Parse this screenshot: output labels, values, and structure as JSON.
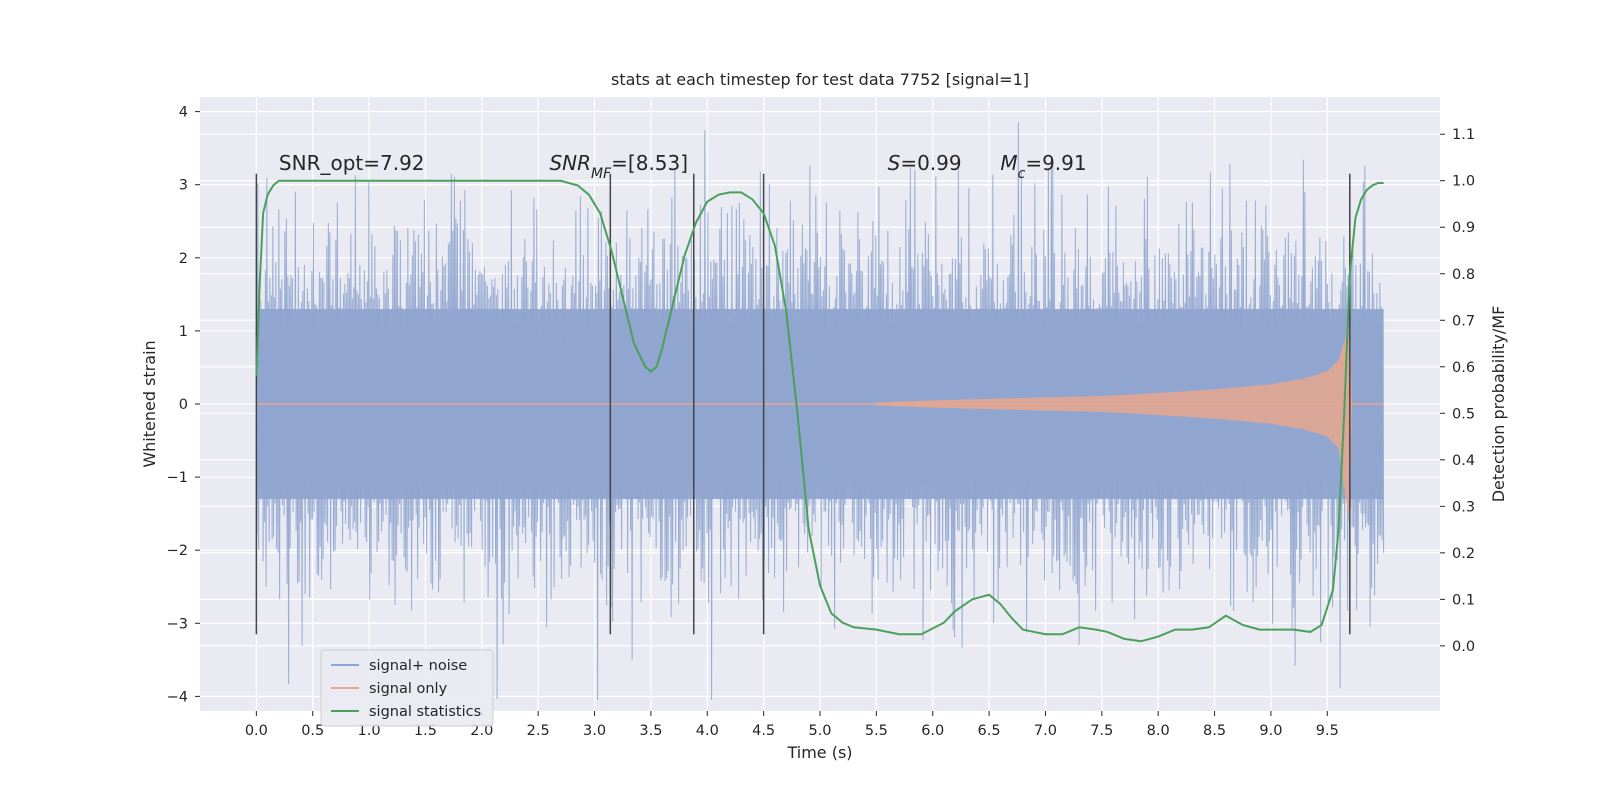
{
  "chart_data": {
    "type": "line",
    "title": "stats at each timestep for test data 7752 [signal=1]",
    "xlabel": "Time (s)",
    "ylabel": "Whitened strain",
    "y2label": "Detection probability/MF",
    "xlim": [
      -0.5,
      10.5
    ],
    "ylim": [
      -4.2,
      4.2
    ],
    "y2lim": [
      -0.14,
      1.18
    ],
    "x_ticks": [
      "0.0",
      "0.5",
      "1.0",
      "1.5",
      "2.0",
      "2.5",
      "3.0",
      "3.5",
      "4.0",
      "4.5",
      "5.0",
      "5.5",
      "6.0",
      "6.5",
      "7.0",
      "7.5",
      "8.0",
      "8.5",
      "9.0",
      "9.5"
    ],
    "x_tick_values": [
      0,
      0.5,
      1,
      1.5,
      2,
      2.5,
      3,
      3.5,
      4,
      4.5,
      5,
      5.5,
      6,
      6.5,
      7,
      7.5,
      8,
      8.5,
      9,
      9.5
    ],
    "y_ticks": [
      "4",
      "3",
      "2",
      "1",
      "0",
      "−1",
      "−2",
      "−3",
      "−4"
    ],
    "y_tick_values": [
      4,
      3,
      2,
      1,
      0,
      -1,
      -2,
      -3,
      -4
    ],
    "y2_ticks": [
      "1.1",
      "1.0",
      "0.9",
      "0.8",
      "0.7",
      "0.6",
      "0.5",
      "0.4",
      "0.3",
      "0.2",
      "0.1",
      "0.0"
    ],
    "y2_tick_values": [
      1.1,
      1.0,
      0.9,
      0.8,
      0.7,
      0.6,
      0.5,
      0.4,
      0.3,
      0.2,
      0.1,
      0.0
    ],
    "grid": true,
    "legend_position": "bottom-left",
    "noise_band": {
      "inner_amplitude": 1.3,
      "outer_amplitude": 1.95,
      "peak_max": 4.05,
      "peak_min": -4.05,
      "x_range": [
        0,
        10
      ]
    },
    "chirp_envelope": [
      [
        5.5,
        0.02
      ],
      [
        6.0,
        0.05
      ],
      [
        6.5,
        0.07
      ],
      [
        7.0,
        0.09
      ],
      [
        7.5,
        0.11
      ],
      [
        8.0,
        0.15
      ],
      [
        8.5,
        0.2
      ],
      [
        9.0,
        0.27
      ],
      [
        9.3,
        0.35
      ],
      [
        9.5,
        0.45
      ],
      [
        9.6,
        0.6
      ],
      [
        9.66,
        0.9
      ],
      [
        9.7,
        1.2
      ],
      [
        9.72,
        0.0
      ]
    ],
    "series": [
      {
        "name": "signal+ noise",
        "color": "#8fa5cf"
      },
      {
        "name": "signal only",
        "color": "#e8a68d"
      },
      {
        "name": "signal statistics",
        "color": "#4aa05a",
        "axis": "right",
        "x": [
          0.0,
          0.03,
          0.06,
          0.1,
          0.15,
          0.2,
          0.3,
          0.5,
          1.0,
          1.5,
          2.0,
          2.5,
          2.7,
          2.85,
          2.95,
          3.05,
          3.15,
          3.25,
          3.35,
          3.45,
          3.5,
          3.55,
          3.6,
          3.7,
          3.8,
          3.9,
          4.0,
          4.1,
          4.2,
          4.3,
          4.4,
          4.5,
          4.6,
          4.7,
          4.8,
          4.9,
          5.0,
          5.1,
          5.2,
          5.3,
          5.5,
          5.7,
          5.9,
          6.1,
          6.2,
          6.35,
          6.5,
          6.6,
          6.7,
          6.8,
          6.9,
          7.0,
          7.15,
          7.3,
          7.45,
          7.55,
          7.7,
          7.85,
          8.0,
          8.15,
          8.3,
          8.45,
          8.6,
          8.75,
          8.9,
          9.05,
          9.2,
          9.35,
          9.45,
          9.55,
          9.6,
          9.65,
          9.7,
          9.75,
          9.8,
          9.85,
          9.9,
          9.95,
          10.0
        ],
        "y": [
          0.58,
          0.78,
          0.93,
          0.97,
          0.99,
          1.0,
          1.0,
          1.0,
          1.0,
          1.0,
          1.0,
          1.0,
          1.0,
          0.99,
          0.97,
          0.93,
          0.85,
          0.75,
          0.65,
          0.6,
          0.59,
          0.6,
          0.64,
          0.74,
          0.84,
          0.91,
          0.955,
          0.97,
          0.975,
          0.975,
          0.96,
          0.93,
          0.86,
          0.72,
          0.5,
          0.25,
          0.13,
          0.07,
          0.05,
          0.04,
          0.035,
          0.025,
          0.025,
          0.05,
          0.075,
          0.1,
          0.11,
          0.09,
          0.06,
          0.035,
          0.03,
          0.025,
          0.025,
          0.04,
          0.035,
          0.03,
          0.015,
          0.01,
          0.02,
          0.035,
          0.035,
          0.04,
          0.065,
          0.045,
          0.035,
          0.035,
          0.035,
          0.03,
          0.045,
          0.12,
          0.25,
          0.5,
          0.8,
          0.92,
          0.96,
          0.98,
          0.99,
          0.995,
          0.995
        ]
      }
    ],
    "vertical_lines": [
      {
        "x": 0.0,
        "y_from": -3.15,
        "y_to": 3.15
      },
      {
        "x": 3.14,
        "y_from": -3.15,
        "y_to": 3.15
      },
      {
        "x": 3.88,
        "y_from": -3.15,
        "y_to": 3.15
      },
      {
        "x": 4.5,
        "y_from": -3.15,
        "y_to": 3.15
      },
      {
        "x": 9.7,
        "y_from": -3.15,
        "y_to": 3.15
      }
    ],
    "annotations": [
      {
        "id": "snr-opt",
        "text": "SNR_opt=7.92",
        "x": 0.2,
        "y": 3.2
      },
      {
        "id": "snr-mf",
        "main": "SNR",
        "sub": "MF",
        "tail": "=[8.53]",
        "x": 2.6,
        "y": 3.2
      },
      {
        "id": "s-value",
        "main": "S",
        "tail": "=0.99",
        "x": 5.6,
        "y": 3.2
      },
      {
        "id": "mc-value",
        "main": "M",
        "sub": "c",
        "tail": "=9.91",
        "x": 6.6,
        "y": 3.2
      }
    ],
    "colors": {
      "plot_background": "#eaeaf2",
      "grid": "#ffffff",
      "vline": "#444444"
    }
  }
}
